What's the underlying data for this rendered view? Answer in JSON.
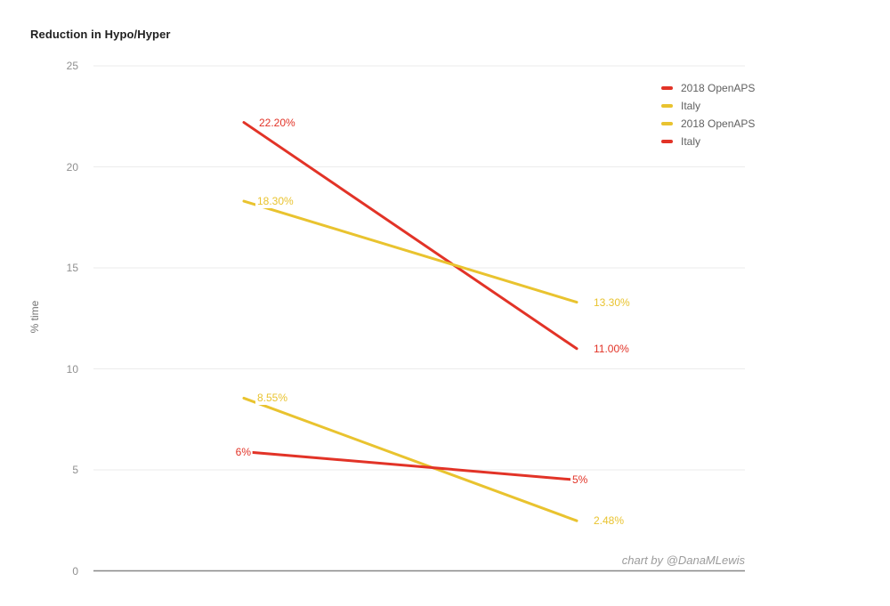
{
  "chart_data": {
    "type": "line",
    "title": "Reduction in Hypo/Hyper",
    "xlabel": "",
    "ylabel": "% time",
    "ylim": [
      0,
      25
    ],
    "yticks": [
      25,
      20,
      15,
      10,
      5,
      0
    ],
    "grid": true,
    "legend_position": "top-right",
    "x_points_per_series": 2,
    "series": [
      {
        "name": "2018 OpenAPS",
        "color": "#e23327",
        "values": [
          22.2,
          11.0
        ],
        "point_labels": [
          "22.20%",
          "11.00%"
        ]
      },
      {
        "name": "Italy",
        "color": "#e9c32f",
        "values": [
          18.3,
          13.3
        ],
        "point_labels": [
          "18.30%",
          "13.30%"
        ]
      },
      {
        "name": "2018 OpenAPS",
        "color": "#e9c32f",
        "values": [
          8.55,
          2.48
        ],
        "point_labels": [
          "8.55%",
          "2.48%"
        ]
      },
      {
        "name": "Italy",
        "color": "#e23327",
        "values": [
          5.9,
          4.5
        ],
        "point_labels": [
          "6%",
          "5%"
        ]
      }
    ],
    "legend": [
      {
        "label": "2018 OpenAPS",
        "color": "#e23327"
      },
      {
        "label": "Italy",
        "color": "#e9c32f"
      },
      {
        "label": "2018 OpenAPS",
        "color": "#e9c32f"
      },
      {
        "label": "Italy",
        "color": "#e23327"
      }
    ],
    "attribution": "chart by @DanaMLewis"
  }
}
